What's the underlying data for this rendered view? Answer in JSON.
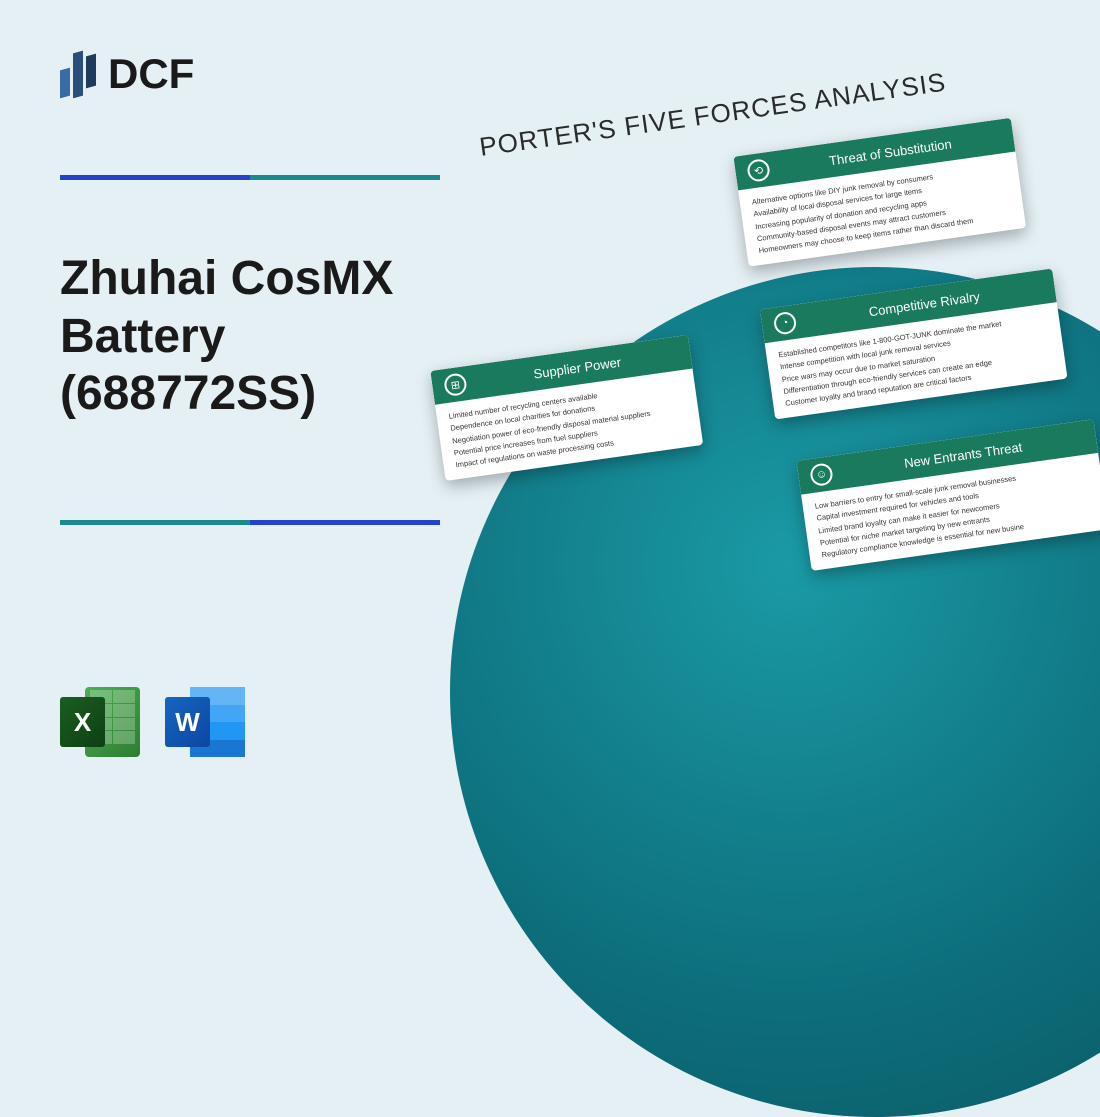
{
  "logo": {
    "text": "DCF"
  },
  "title": "Zhuhai CosMX Battery (688772SS)",
  "diagram_title": "PORTER'S FIVE FORCES ANALYSIS",
  "icons": {
    "excel": "X",
    "word": "W"
  },
  "colors": {
    "background": "#e5f0f5",
    "card_header": "#1a7a5e",
    "circle_gradient_start": "#1a9aa5",
    "circle_gradient_end": "#0a5560"
  },
  "cards": {
    "supplier": {
      "title": "Supplier Power",
      "items": [
        "Limited number of recycling centers available",
        "Dependence on local charities for donations",
        "Negotiation power of eco-friendly disposal material suppliers",
        "Potential price increases from fuel suppliers",
        "Impact of regulations on waste processing costs"
      ]
    },
    "substitution": {
      "title": "Threat of Substitution",
      "items": [
        "Alternative options like DIY junk removal by consumers",
        "Availability of local disposal services for large items",
        "Increasing popularity of donation and recycling apps",
        "Community-based disposal events may attract customers",
        "Homeowners may choose to keep items rather than discard them"
      ]
    },
    "rivalry": {
      "title": "Competitive Rivalry",
      "items": [
        "Established competitors like 1-800-GOT-JUNK dominate the market",
        "Intense competition with local junk removal services",
        "Price wars may occur due to market saturation",
        "Differentiation through eco-friendly services can create an edge",
        "Customer loyalty and brand reputation are critical factors"
      ]
    },
    "entrants": {
      "title": "New Entrants Threat",
      "items": [
        "Low barriers to entry for small-scale junk removal businesses",
        "Capital investment required for vehicles and tools",
        "Limited brand loyalty can make it easier for newcomers",
        "Potential for niche market targeting by new entrants",
        "Regulatory compliance knowledge is essential for new busine"
      ]
    }
  }
}
